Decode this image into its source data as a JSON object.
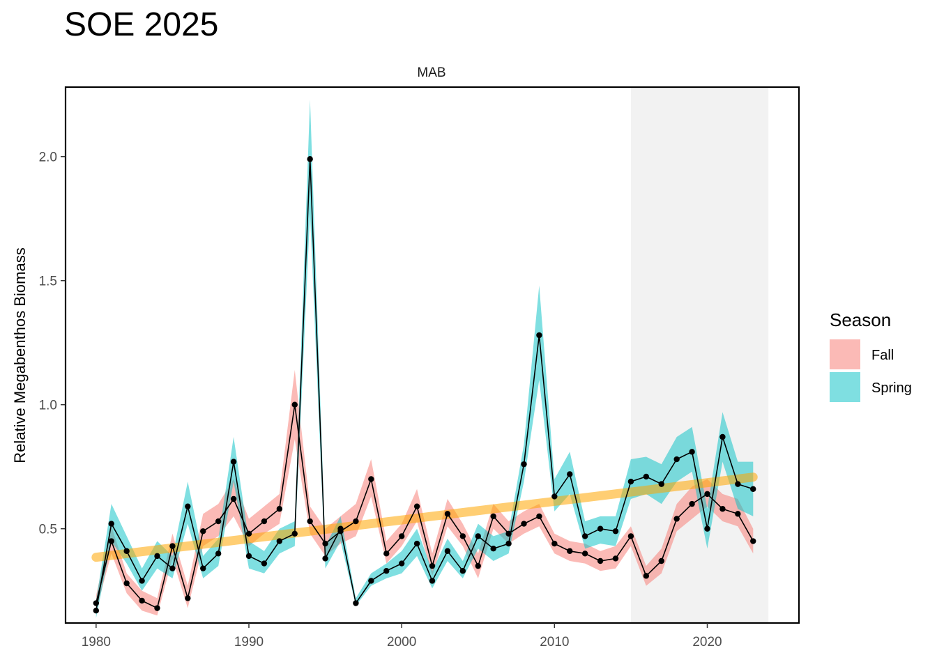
{
  "page": {
    "title": "SOE 2025"
  },
  "chart_data": {
    "type": "line",
    "title": "SOE 2025",
    "panel_label": "MAB",
    "xlabel": "",
    "ylabel": "Relative Megabenthos Biomass",
    "xlim": [
      1978,
      2026
    ],
    "ylim": [
      0.12,
      2.28
    ],
    "x_ticks": [
      1980,
      1990,
      2000,
      2010,
      2020
    ],
    "y_ticks": [
      0.5,
      1.0,
      1.5,
      2.0
    ],
    "y_tick_labels": [
      "0.5",
      "1.0",
      "1.5",
      "2.0"
    ],
    "grid": false,
    "highlight_region": {
      "x_start": 2015,
      "x_end": 2024,
      "color": "#f2f2f2"
    },
    "trend_line": {
      "x": [
        1980,
        2023
      ],
      "y": [
        0.385,
        0.708
      ],
      "color": "#ffa500"
    },
    "legend": {
      "title": "Season",
      "position": "right"
    },
    "series": [
      {
        "name": "Fall",
        "color": "#f8766d",
        "x": [
          1980,
          1981,
          1982,
          1983,
          1984,
          1985,
          1986,
          1987,
          1988,
          1989,
          1990,
          1991,
          1992,
          1993,
          1994,
          1995,
          1996,
          1997,
          1998,
          1999,
          2000,
          2001,
          2002,
          2003,
          2004,
          2005,
          2006,
          2007,
          2008,
          2009,
          2010,
          2011,
          2012,
          2013,
          2014,
          2015,
          2016,
          2017,
          2018,
          2019,
          2020,
          2021,
          2022,
          2023
        ],
        "y": [
          0.2,
          0.45,
          0.28,
          0.21,
          0.18,
          0.43,
          0.22,
          0.49,
          0.53,
          0.62,
          0.48,
          0.53,
          0.58,
          1.0,
          0.53,
          0.44,
          0.49,
          0.53,
          0.7,
          0.4,
          0.47,
          0.59,
          0.35,
          0.56,
          0.47,
          0.35,
          0.55,
          0.48,
          0.52,
          0.55,
          0.44,
          0.41,
          0.4,
          0.37,
          0.38,
          0.47,
          0.31,
          0.37,
          0.54,
          0.6,
          0.64,
          0.58,
          0.56,
          0.45
        ],
        "lower": [
          0.17,
          0.4,
          0.24,
          0.17,
          0.15,
          0.38,
          0.18,
          0.43,
          0.47,
          0.55,
          0.43,
          0.48,
          0.52,
          0.86,
          0.48,
          0.39,
          0.44,
          0.47,
          0.63,
          0.36,
          0.43,
          0.53,
          0.31,
          0.51,
          0.43,
          0.3,
          0.5,
          0.44,
          0.48,
          0.51,
          0.4,
          0.37,
          0.36,
          0.33,
          0.34,
          0.43,
          0.27,
          0.32,
          0.49,
          0.54,
          0.59,
          0.53,
          0.51,
          0.4
        ],
        "upper": [
          0.23,
          0.51,
          0.32,
          0.25,
          0.22,
          0.48,
          0.27,
          0.56,
          0.6,
          0.7,
          0.54,
          0.59,
          0.64,
          1.14,
          0.59,
          0.5,
          0.55,
          0.6,
          0.78,
          0.45,
          0.52,
          0.66,
          0.4,
          0.62,
          0.52,
          0.4,
          0.6,
          0.53,
          0.57,
          0.6,
          0.48,
          0.45,
          0.44,
          0.41,
          0.43,
          0.51,
          0.35,
          0.42,
          0.6,
          0.67,
          0.7,
          0.64,
          0.62,
          0.5
        ]
      },
      {
        "name": "Spring",
        "color": "#00bfc4",
        "x": [
          1980,
          1981,
          1982,
          1983,
          1984,
          1985,
          1986,
          1987,
          1988,
          1989,
          1990,
          1991,
          1992,
          1993,
          1994,
          1995,
          1996,
          1997,
          1998,
          1999,
          2000,
          2001,
          2002,
          2003,
          2004,
          2005,
          2006,
          2007,
          2008,
          2009,
          2010,
          2011,
          2012,
          2013,
          2014,
          2015,
          2016,
          2017,
          2018,
          2019,
          2020,
          2021,
          2022,
          2023
        ],
        "y": [
          0.17,
          0.52,
          0.41,
          0.29,
          0.39,
          0.34,
          0.59,
          0.34,
          0.4,
          0.77,
          0.39,
          0.36,
          0.45,
          0.48,
          1.99,
          0.38,
          0.5,
          0.2,
          0.29,
          0.33,
          0.36,
          0.44,
          0.29,
          0.41,
          0.33,
          0.47,
          0.42,
          0.44,
          0.76,
          1.28,
          0.63,
          0.72,
          0.47,
          0.5,
          0.49,
          0.69,
          0.71,
          0.68,
          0.78,
          0.81,
          0.5,
          0.87,
          0.68,
          0.66
        ],
        "lower": [
          0.14,
          0.45,
          0.36,
          0.25,
          0.34,
          0.3,
          0.52,
          0.3,
          0.35,
          0.69,
          0.34,
          0.32,
          0.4,
          0.43,
          1.77,
          0.34,
          0.45,
          0.19,
          0.27,
          0.3,
          0.32,
          0.39,
          0.26,
          0.37,
          0.3,
          0.42,
          0.37,
          0.4,
          0.69,
          1.1,
          0.57,
          0.64,
          0.42,
          0.44,
          0.43,
          0.62,
          0.64,
          0.6,
          0.69,
          0.73,
          0.42,
          0.77,
          0.58,
          0.55
        ],
        "upper": [
          0.21,
          0.6,
          0.47,
          0.34,
          0.45,
          0.39,
          0.69,
          0.39,
          0.46,
          0.87,
          0.45,
          0.41,
          0.5,
          0.53,
          2.23,
          0.43,
          0.55,
          0.22,
          0.32,
          0.36,
          0.41,
          0.5,
          0.33,
          0.46,
          0.37,
          0.52,
          0.47,
          0.49,
          0.84,
          1.48,
          0.7,
          0.81,
          0.53,
          0.55,
          0.55,
          0.78,
          0.79,
          0.76,
          0.87,
          0.91,
          0.58,
          0.97,
          0.77,
          0.77
        ]
      }
    ]
  }
}
